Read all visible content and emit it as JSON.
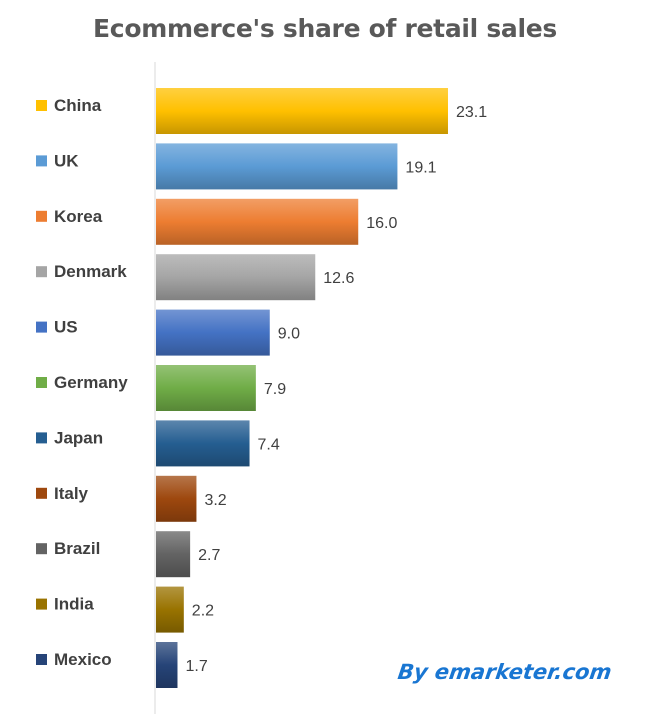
{
  "chart_data": {
    "type": "bar",
    "orientation": "horizontal",
    "title": "Ecommerce's share of retail sales",
    "xlabel": "",
    "ylabel": "",
    "xlim": [
      0,
      25
    ],
    "grid": false,
    "legend": "left",
    "categories": [
      "China",
      "UK",
      "Korea",
      "Denmark",
      "US",
      "Germany",
      "Japan",
      "Italy",
      "Brazil",
      "India",
      "Mexico"
    ],
    "values": [
      23.1,
      19.1,
      16.0,
      12.6,
      9.0,
      7.9,
      7.4,
      3.2,
      2.7,
      2.2,
      1.7
    ],
    "value_labels": [
      "23.1",
      "19.1",
      "16.0",
      "12.6",
      "9.0",
      "7.9",
      "7.4",
      "3.2",
      "2.7",
      "2.2",
      "1.7"
    ],
    "colors": [
      "#ffc000",
      "#5b9bd5",
      "#ed7d31",
      "#a5a5a5",
      "#4472c4",
      "#70ad47",
      "#255e91",
      "#9e480e",
      "#636363",
      "#997300",
      "#264478"
    ]
  },
  "watermark": "By emarketer.com"
}
